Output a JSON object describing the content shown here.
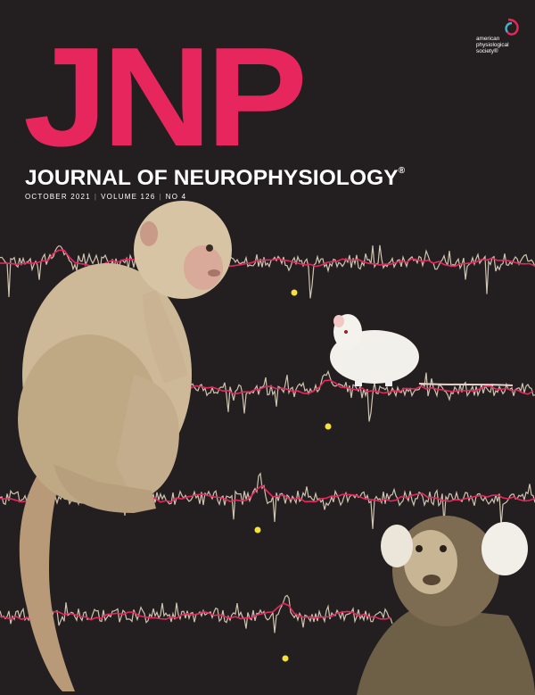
{
  "masthead": {
    "acronym": "JNP",
    "title": "JOURNAL OF NEUROPHYSIOLOGY",
    "registered_mark": "®"
  },
  "issue": {
    "month_year": "OCTOBER 2021",
    "volume": "VOLUME 126",
    "number": "NO 4"
  },
  "society": {
    "line1": "american",
    "line2": "physiological",
    "line3": "society®"
  },
  "colors": {
    "background": "#231f20",
    "accent": "#e8265e",
    "trace": "#cfc4b0",
    "marker": "#f5e13a"
  }
}
